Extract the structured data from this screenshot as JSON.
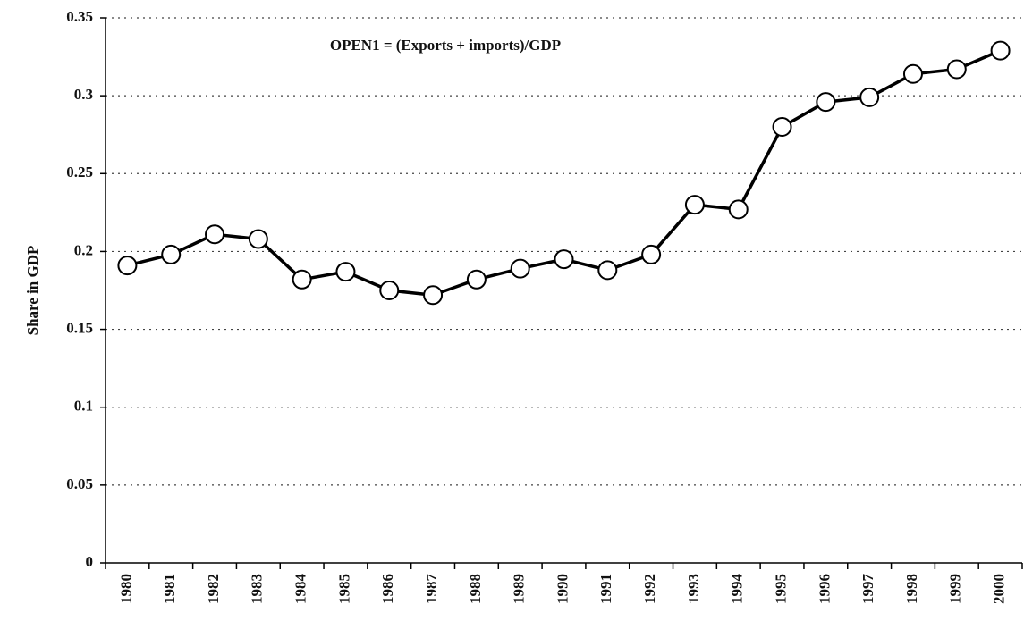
{
  "chart_data": {
    "type": "line",
    "annotation": "OPEN1 = (Exports + imports)/GDP",
    "y_label": "Share in GDP",
    "categories": [
      "1980",
      "1981",
      "1982",
      "1983",
      "1984",
      "1985",
      "1986",
      "1987",
      "1988",
      "1989",
      "1990",
      "1991",
      "1992",
      "1993",
      "1994",
      "1995",
      "1996",
      "1997",
      "1998",
      "1999",
      "2000"
    ],
    "series": [
      {
        "color": "#000000",
        "values": [
          0.191,
          0.198,
          0.211,
          0.208,
          0.182,
          0.187,
          0.175,
          0.172,
          0.182,
          0.189,
          0.195,
          0.188,
          0.198,
          0.23,
          0.227,
          0.28,
          0.296,
          0.299,
          0.314,
          0.317,
          0.329
        ]
      }
    ],
    "ylim": [
      0,
      0.35
    ],
    "yticks": [
      0,
      0.05,
      0.1,
      0.15,
      0.2,
      0.25,
      0.3,
      0.35
    ],
    "grid": true
  }
}
